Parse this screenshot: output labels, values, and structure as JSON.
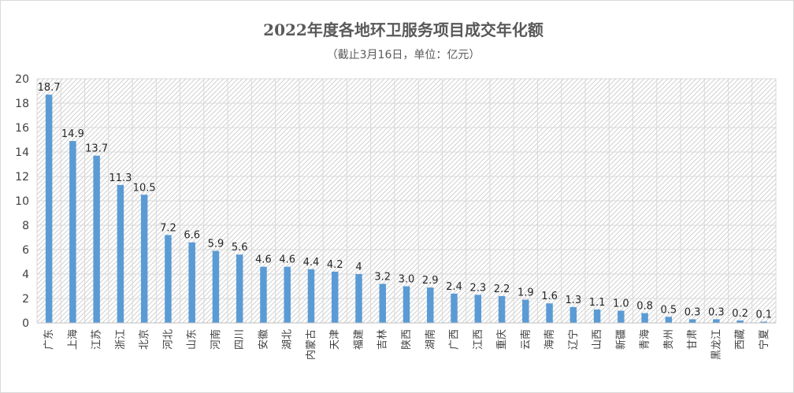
{
  "chart_data": {
    "type": "bar",
    "title": "2022年度各地环卫服务项目成交年化额",
    "subtitle": "（截止3月16日，单位：亿元）",
    "xlabel": "",
    "ylabel": "",
    "ylim": [
      0,
      20
    ],
    "yticks": [
      0,
      2,
      4,
      6,
      8,
      10,
      12,
      14,
      16,
      18,
      20
    ],
    "grid": true,
    "legend": "none",
    "categories": [
      "广东",
      "上海",
      "江苏",
      "浙江",
      "北京",
      "河北",
      "山东",
      "河南",
      "四川",
      "安徽",
      "湖北",
      "内蒙古",
      "天津",
      "福建",
      "吉林",
      "陕西",
      "湖南",
      "广西",
      "江西",
      "重庆",
      "云南",
      "海南",
      "辽宁",
      "山西",
      "新疆",
      "青海",
      "贵州",
      "甘肃",
      "黑龙江",
      "西藏",
      "宁夏"
    ],
    "values": [
      18.7,
      14.9,
      13.7,
      11.3,
      10.5,
      7.2,
      6.6,
      5.9,
      5.6,
      4.6,
      4.6,
      4.4,
      4.2,
      4,
      3.2,
      3.0,
      2.9,
      2.4,
      2.3,
      2.2,
      1.9,
      1.6,
      1.3,
      1.1,
      1.0,
      0.8,
      0.5,
      0.3,
      0.3,
      0.2,
      0.1
    ],
    "value_labels": [
      "18.7",
      "14.9",
      "13.7",
      "11.3",
      "10.5",
      "7.2",
      "6.6",
      "5.9",
      "5.6",
      "4.6",
      "4.6",
      "4.4",
      "4.2",
      "4",
      "3.2",
      "3.0",
      "2.9",
      "2.4",
      "2.3",
      "2.2",
      "1.9",
      "1.6",
      "1.3",
      "1.1",
      "1.0",
      "0.8",
      "0.5",
      "0.3",
      "0.3",
      "0.2",
      "0.1"
    ]
  },
  "colors": {
    "bar": "#5b9bd5",
    "grid": "#d9d9d9",
    "hatch": "#bfbfbf",
    "axis": "#bfbfbf",
    "text": "#404040"
  }
}
